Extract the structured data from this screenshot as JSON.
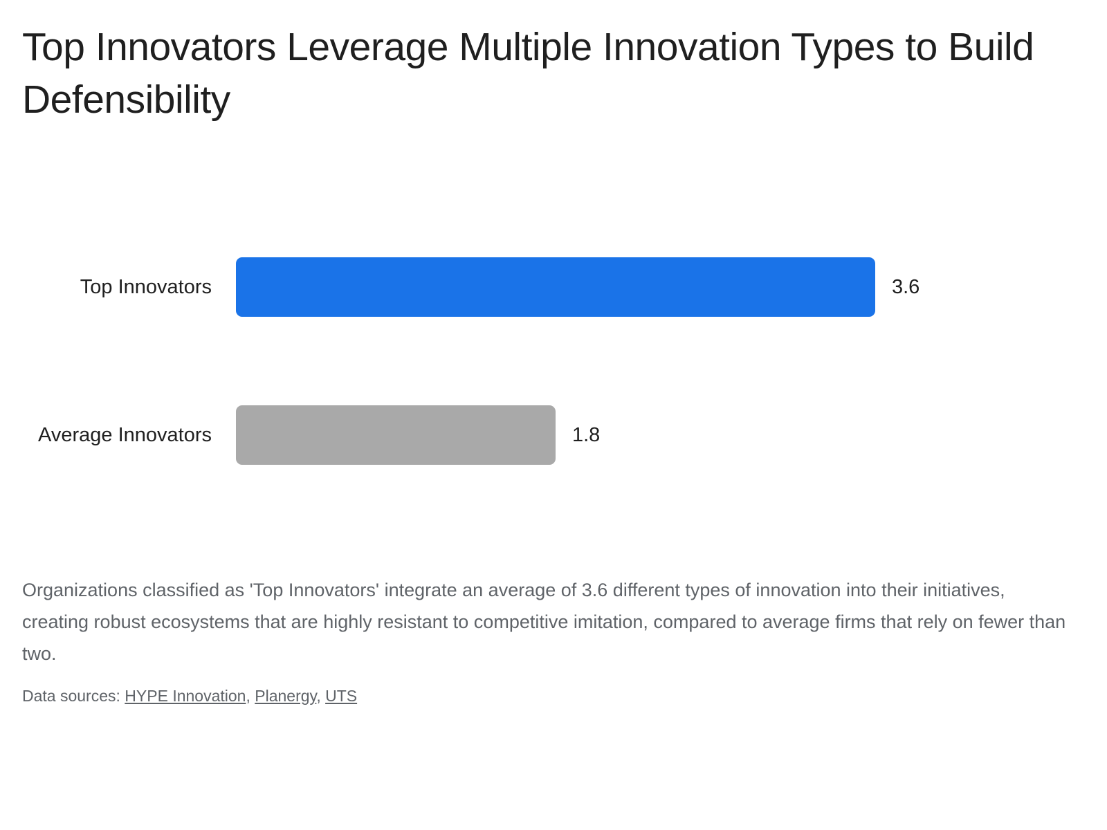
{
  "header": {
    "title": "Top Innovators Leverage Multiple Innovation Types to Build Defensibility"
  },
  "chart_data": {
    "type": "bar",
    "orientation": "horizontal",
    "categories": [
      "Top Innovators",
      "Average Innovators"
    ],
    "values": [
      3.6,
      1.8
    ],
    "value_labels": [
      "3.6",
      "1.8"
    ],
    "bar_colors": [
      "#1a73e8",
      "#a9a9a9"
    ],
    "xlim": [
      0,
      3.6
    ],
    "grid": false,
    "legend": "none"
  },
  "description": {
    "text": "Organizations classified as 'Top Innovators' integrate an average of 3.6 different types of innovation into their initiatives, creating robust ecosystems that are highly resistant to competitive imitation, compared to average firms that rely on fewer than two."
  },
  "sources": {
    "prefix": "Data sources: ",
    "links": [
      {
        "label": "HYPE Innovation"
      },
      {
        "label": "Planergy"
      },
      {
        "label": "UTS"
      }
    ],
    "separator": ", "
  }
}
